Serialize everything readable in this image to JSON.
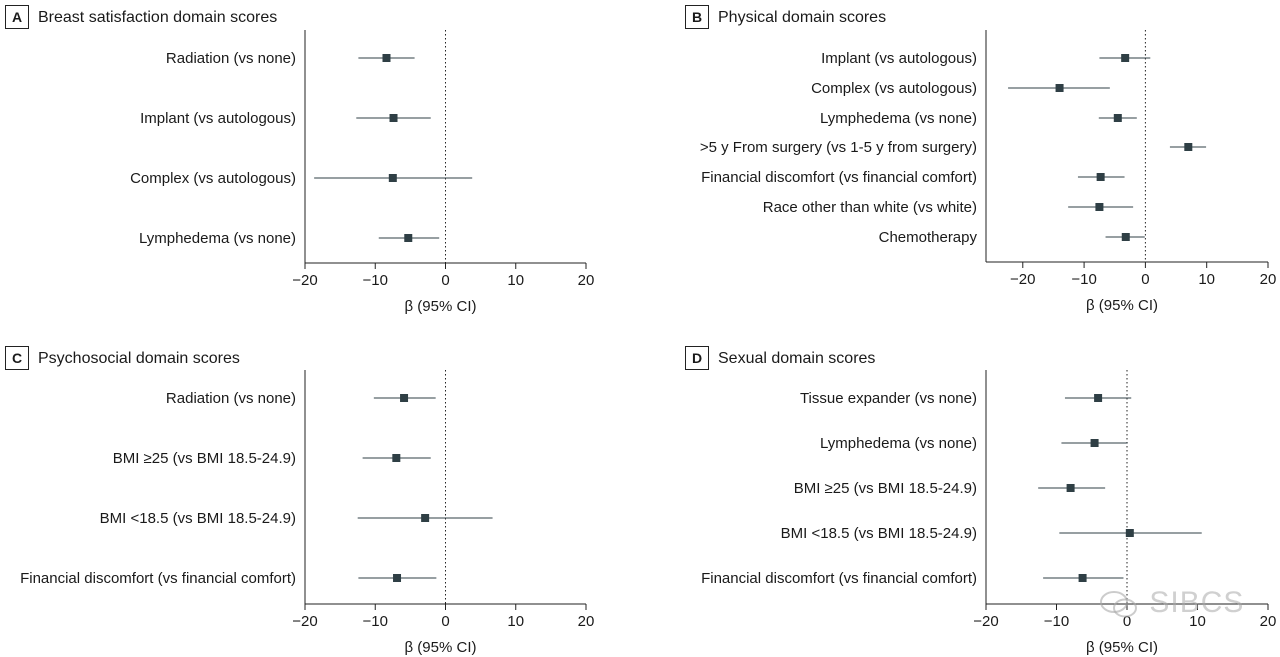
{
  "watermark": "SIBCS",
  "chart_data": [
    {
      "type": "forest",
      "panel_letter": "A",
      "title": "Breast satisfaction domain scores",
      "xlabel": "β (95% CI)",
      "xlim": [
        -20,
        20
      ],
      "xticks": [
        "−20",
        "−10",
        "0",
        "10",
        "20"
      ],
      "reference_line": 0,
      "rows": [
        {
          "label": "Radiation (vs none)",
          "estimate": -8.4,
          "ci": [
            -12.4,
            -4.4
          ]
        },
        {
          "label": "Implant (vs autologous)",
          "estimate": -7.4,
          "ci": [
            -12.7,
            -2.1
          ]
        },
        {
          "label": "Complex (vs autologous)",
          "estimate": -7.5,
          "ci": [
            -18.7,
            3.8
          ]
        },
        {
          "label": "Lymphedema (vs none)",
          "estimate": -5.3,
          "ci": [
            -9.5,
            -0.9
          ]
        }
      ]
    },
    {
      "type": "forest",
      "panel_letter": "B",
      "title": "Physical domain scores",
      "xlabel": "β (95% CI)",
      "xlim": [
        -26,
        20
      ],
      "xticks": [
        "−20",
        "−10",
        "0",
        "10",
        "20"
      ],
      "reference_line": 0,
      "rows": [
        {
          "label": "Implant (vs autologous)",
          "estimate": -3.3,
          "ci": [
            -7.5,
            0.8
          ]
        },
        {
          "label": "Complex (vs autologous)",
          "estimate": -14.0,
          "ci": [
            -22.4,
            -5.8
          ]
        },
        {
          "label": "Lymphedema (vs none)",
          "estimate": -4.5,
          "ci": [
            -7.6,
            -1.4
          ]
        },
        {
          "label": ">5 y From surgery (vs 1-5 y from surgery)",
          "estimate": 7.0,
          "ci": [
            4.0,
            9.9
          ]
        },
        {
          "label": "Financial discomfort (vs financial comfort)",
          "estimate": -7.3,
          "ci": [
            -11.0,
            -3.4
          ]
        },
        {
          "label": "Race other than white (vs white)",
          "estimate": -7.5,
          "ci": [
            -12.6,
            -2.0
          ]
        },
        {
          "label": "Chemotherapy",
          "estimate": -3.2,
          "ci": [
            -6.5,
            -0.1
          ]
        }
      ]
    },
    {
      "type": "forest",
      "panel_letter": "C",
      "title": "Psychosocial domain scores",
      "xlabel": "β (95% CI)",
      "xlim": [
        -20,
        20
      ],
      "xticks": [
        "−20",
        "−10",
        "0",
        "10",
        "20"
      ],
      "reference_line": 0,
      "rows": [
        {
          "label": "Radiation (vs none)",
          "estimate": -5.9,
          "ci": [
            -10.2,
            -1.4
          ]
        },
        {
          "label": "BMI ≥25 (vs BMI 18.5-24.9)",
          "estimate": -7.0,
          "ci": [
            -11.8,
            -2.1
          ]
        },
        {
          "label": "BMI <18.5 (vs BMI 18.5-24.9)",
          "estimate": -2.9,
          "ci": [
            -12.5,
            6.7
          ]
        },
        {
          "label": "Financial discomfort (vs financial comfort)",
          "estimate": -6.9,
          "ci": [
            -12.4,
            -1.3
          ]
        }
      ]
    },
    {
      "type": "forest",
      "panel_letter": "D",
      "title": "Sexual domain scores",
      "xlabel": "β (95% CI)",
      "xlim": [
        -20,
        20
      ],
      "xticks": [
        "−20",
        "−10",
        "0",
        "10",
        "20"
      ],
      "reference_line": 0,
      "rows": [
        {
          "label": "Tissue expander (vs none)",
          "estimate": -4.1,
          "ci": [
            -8.8,
            0.6
          ]
        },
        {
          "label": "Lymphedema (vs none)",
          "estimate": -4.6,
          "ci": [
            -9.3,
            0.1
          ]
        },
        {
          "label": "BMI ≥25 (vs BMI 18.5-24.9)",
          "estimate": -8.0,
          "ci": [
            -12.6,
            -3.1
          ]
        },
        {
          "label": "BMI <18.5 (vs BMI 18.5-24.9)",
          "estimate": 0.4,
          "ci": [
            -9.6,
            10.6
          ]
        },
        {
          "label": "Financial discomfort (vs financial comfort)",
          "estimate": -6.3,
          "ci": [
            -11.9,
            -0.5
          ]
        }
      ]
    }
  ],
  "colors": {
    "marker": "#2f3f45",
    "ci_line": "#2f3f45",
    "axis": "#222222",
    "text": "#1a1a1a"
  }
}
